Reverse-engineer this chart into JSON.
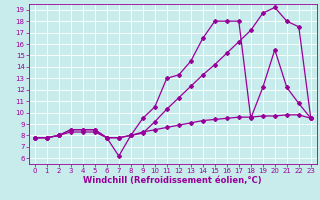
{
  "xlabel": "Windchill (Refroidissement éolien,°C)",
  "bg_color": "#c8ecec",
  "line_color": "#990099",
  "grid_color": "#ffffff",
  "xlim": [
    -0.5,
    23.5
  ],
  "ylim": [
    5.5,
    19.5
  ],
  "xticks": [
    0,
    1,
    2,
    3,
    4,
    5,
    6,
    7,
    8,
    9,
    10,
    11,
    12,
    13,
    14,
    15,
    16,
    17,
    18,
    19,
    20,
    21,
    22,
    23
  ],
  "yticks": [
    6,
    7,
    8,
    9,
    10,
    11,
    12,
    13,
    14,
    15,
    16,
    17,
    18,
    19
  ],
  "line1_x": [
    0,
    1,
    2,
    3,
    4,
    5,
    6,
    7,
    8,
    9,
    10,
    11,
    12,
    13,
    14,
    15,
    16,
    17,
    18,
    19,
    20,
    21,
    22,
    23
  ],
  "line1_y": [
    7.8,
    7.8,
    8.0,
    8.5,
    8.5,
    8.5,
    7.8,
    6.2,
    8.0,
    9.5,
    10.5,
    13.0,
    13.3,
    14.5,
    16.5,
    18.0,
    18.0,
    18.0,
    9.5,
    12.2,
    15.5,
    12.2,
    10.8,
    9.5
  ],
  "line2_x": [
    0,
    1,
    2,
    3,
    4,
    5,
    6,
    7,
    8,
    9,
    10,
    11,
    12,
    13,
    14,
    15,
    16,
    17,
    18,
    19,
    20,
    21,
    22,
    23
  ],
  "line2_y": [
    7.8,
    7.8,
    8.0,
    8.3,
    8.3,
    8.3,
    7.8,
    7.8,
    8.0,
    8.3,
    8.5,
    8.7,
    8.9,
    9.1,
    9.3,
    9.4,
    9.5,
    9.6,
    9.6,
    9.7,
    9.7,
    9.8,
    9.8,
    9.5
  ],
  "line3_x": [
    0,
    1,
    2,
    3,
    4,
    5,
    6,
    7,
    8,
    9,
    10,
    11,
    12,
    13,
    14,
    15,
    16,
    17,
    18,
    19,
    20,
    21,
    22,
    23
  ],
  "line3_y": [
    7.8,
    7.8,
    8.0,
    8.5,
    8.5,
    8.5,
    7.8,
    7.8,
    8.0,
    8.2,
    9.2,
    10.3,
    11.3,
    12.3,
    13.3,
    14.2,
    15.2,
    16.2,
    17.2,
    18.7,
    19.2,
    18.0,
    17.5,
    9.5
  ],
  "marker": "D",
  "markersize": 2,
  "linewidth": 0.9,
  "tick_fontsize": 5,
  "xlabel_fontsize": 6
}
